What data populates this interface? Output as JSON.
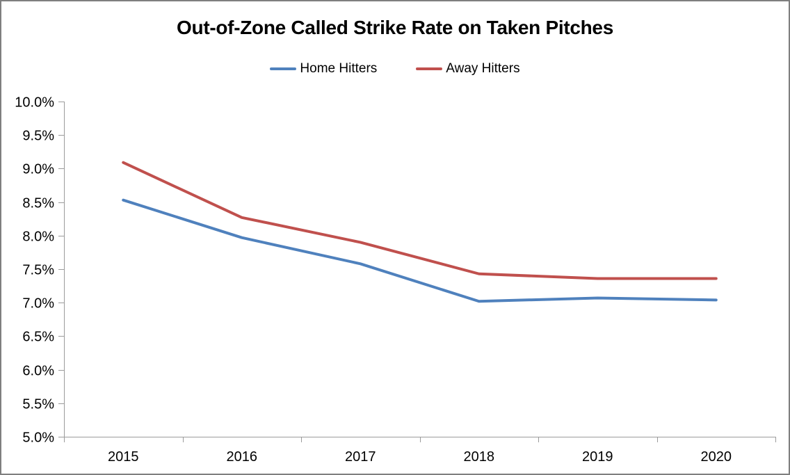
{
  "chart_data": {
    "type": "line",
    "title": "Out-of-Zone Called Strike Rate on Taken Pitches",
    "categories": [
      "2015",
      "2016",
      "2017",
      "2018",
      "2019",
      "2020"
    ],
    "series": [
      {
        "name": "Home Hitters",
        "color": "#4F81BD",
        "values": [
          8.53,
          7.97,
          7.58,
          7.02,
          7.07,
          7.04
        ]
      },
      {
        "name": "Away Hitters",
        "color": "#C0504D",
        "values": [
          9.09,
          8.27,
          7.9,
          7.43,
          7.36,
          7.36
        ]
      }
    ],
    "xlabel": "",
    "ylabel": "",
    "ylim": [
      5.0,
      10.0
    ],
    "y_tick_step": 0.5,
    "y_tick_labels": [
      "10.0%",
      "9.5%",
      "9.0%",
      "8.5%",
      "8.0%",
      "7.5%",
      "7.0%",
      "6.5%",
      "6.0%",
      "5.5%",
      "5.0%"
    ],
    "grid": false,
    "legend_position": "top-center",
    "axis_color": "#9B9B9B",
    "text_color": "#000000"
  }
}
